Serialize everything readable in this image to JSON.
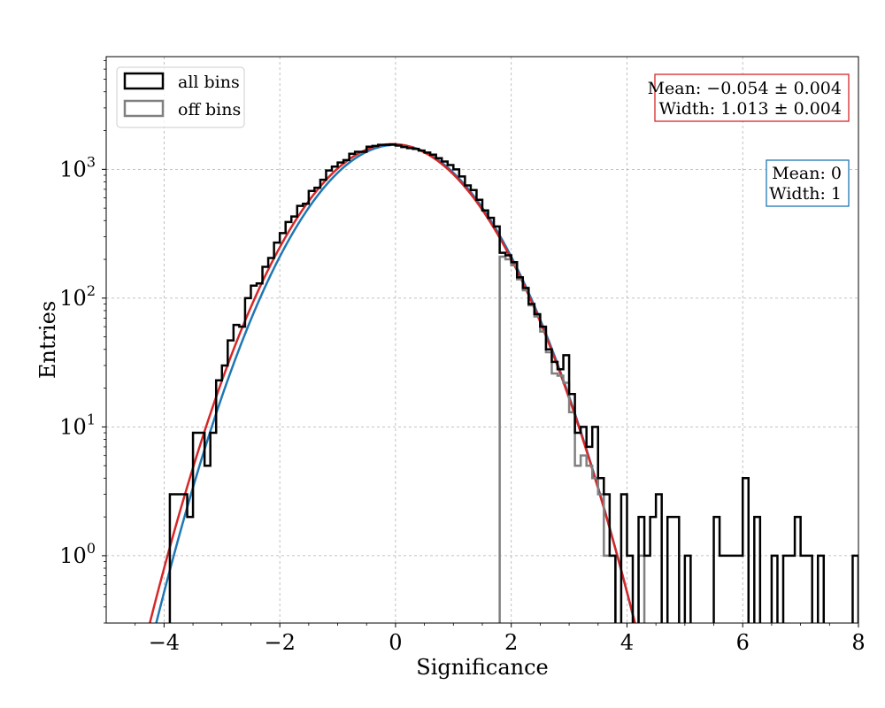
{
  "chart_data": {
    "type": "histogram",
    "xlabel": "Significance",
    "ylabel": "Entries",
    "xlim": [
      -5,
      8
    ],
    "ylim": [
      0.3,
      7500
    ],
    "yscale": "log",
    "grid": true,
    "x_ticks": [
      -4,
      -2,
      0,
      2,
      4,
      6,
      8
    ],
    "x_tick_labels": [
      "−4",
      "−2",
      "0",
      "2",
      "4",
      "6",
      "8"
    ],
    "y_ticks": [
      {
        "value": 1,
        "base": "10",
        "exp": "0"
      },
      {
        "value": 10,
        "base": "10",
        "exp": "1"
      },
      {
        "value": 100,
        "base": "10",
        "exp": "2"
      },
      {
        "value": 1000,
        "base": "10",
        "exp": "3"
      }
    ],
    "legend": {
      "placement": "top-left",
      "entries": [
        {
          "label": "all bins",
          "color": "#000000"
        },
        {
          "label": "off bins",
          "color": "#808080"
        }
      ]
    },
    "annotations": [
      {
        "id": "fit",
        "lines": [
          "Mean: −0.054 ± 0.004",
          "Width: 1.013 ± 0.004"
        ],
        "border": "#d62728",
        "placement": "top-right"
      },
      {
        "id": "ref",
        "lines": [
          "Mean: 0",
          "Width: 1"
        ],
        "border": "#1f77b4",
        "placement": "right"
      }
    ],
    "bin_width": 0.1,
    "series": [
      {
        "name": "all bins",
        "color": "#000000",
        "bins": [
          [
            -3.9,
            3
          ],
          [
            -3.8,
            3
          ],
          [
            -3.7,
            3
          ],
          [
            -3.6,
            2
          ],
          [
            -3.5,
            9
          ],
          [
            -3.4,
            9
          ],
          [
            -3.3,
            5
          ],
          [
            -3.2,
            9
          ],
          [
            -3.1,
            23
          ],
          [
            -3.0,
            30
          ],
          [
            -2.9,
            47
          ],
          [
            -2.8,
            62
          ],
          [
            -2.7,
            60
          ],
          [
            -2.6,
            100
          ],
          [
            -2.5,
            125
          ],
          [
            -2.4,
            130
          ],
          [
            -2.3,
            175
          ],
          [
            -2.2,
            205
          ],
          [
            -2.1,
            270
          ],
          [
            -2.0,
            320
          ],
          [
            -1.9,
            390
          ],
          [
            -1.8,
            430
          ],
          [
            -1.7,
            520
          ],
          [
            -1.6,
            540
          ],
          [
            -1.5,
            680
          ],
          [
            -1.4,
            720
          ],
          [
            -1.3,
            830
          ],
          [
            -1.2,
            980
          ],
          [
            -1.1,
            1050
          ],
          [
            -1.0,
            1130
          ],
          [
            -0.9,
            1180
          ],
          [
            -0.8,
            1320
          ],
          [
            -0.7,
            1370
          ],
          [
            -0.6,
            1370
          ],
          [
            -0.5,
            1500
          ],
          [
            -0.4,
            1520
          ],
          [
            -0.3,
            1550
          ],
          [
            -0.2,
            1550
          ],
          [
            -0.1,
            1560
          ],
          [
            0.0,
            1530
          ],
          [
            0.1,
            1490
          ],
          [
            0.2,
            1460
          ],
          [
            0.3,
            1440
          ],
          [
            0.4,
            1400
          ],
          [
            0.5,
            1350
          ],
          [
            0.6,
            1300
          ],
          [
            0.7,
            1220
          ],
          [
            0.8,
            1150
          ],
          [
            0.9,
            1080
          ],
          [
            1.0,
            1000
          ],
          [
            1.1,
            880
          ],
          [
            1.2,
            750
          ],
          [
            1.3,
            690
          ],
          [
            1.4,
            580
          ],
          [
            1.5,
            480
          ],
          [
            1.6,
            420
          ],
          [
            1.7,
            360
          ],
          [
            1.8,
            225
          ],
          [
            1.9,
            215
          ],
          [
            2.0,
            190
          ],
          [
            2.1,
            145
          ],
          [
            2.2,
            120
          ],
          [
            2.3,
            90
          ],
          [
            2.4,
            75
          ],
          [
            2.5,
            60
          ],
          [
            2.6,
            40
          ],
          [
            2.7,
            32
          ],
          [
            2.8,
            28
          ],
          [
            2.9,
            36
          ],
          [
            3.0,
            18
          ],
          [
            3.1,
            9
          ],
          [
            3.2,
            10
          ],
          [
            3.3,
            7
          ],
          [
            3.4,
            10
          ],
          [
            3.5,
            4
          ],
          [
            3.6,
            3
          ],
          [
            3.7,
            1
          ],
          [
            3.8,
            0.1
          ],
          [
            3.9,
            3
          ],
          [
            4.0,
            1
          ],
          [
            4.1,
            0.1
          ],
          [
            4.2,
            2
          ],
          [
            4.3,
            1
          ],
          [
            4.4,
            2
          ],
          [
            4.5,
            3
          ],
          [
            4.6,
            0.1
          ],
          [
            4.7,
            2
          ],
          [
            4.8,
            2
          ],
          [
            4.9,
            0.1
          ],
          [
            5.0,
            1
          ],
          [
            5.1,
            0.1
          ],
          [
            5.2,
            0.1
          ],
          [
            5.3,
            0.1
          ],
          [
            5.4,
            0.1
          ],
          [
            5.5,
            2
          ],
          [
            5.6,
            1
          ],
          [
            5.7,
            1
          ],
          [
            5.8,
            1
          ],
          [
            5.9,
            1
          ],
          [
            6.0,
            4
          ],
          [
            6.1,
            0.1
          ],
          [
            6.2,
            2
          ],
          [
            6.3,
            0.1
          ],
          [
            6.4,
            0.1
          ],
          [
            6.5,
            1
          ],
          [
            6.6,
            0.1
          ],
          [
            6.7,
            1
          ],
          [
            6.8,
            1
          ],
          [
            6.9,
            2
          ],
          [
            7.0,
            1
          ],
          [
            7.1,
            1
          ],
          [
            7.2,
            0.1
          ],
          [
            7.3,
            1
          ],
          [
            7.4,
            0.1
          ],
          [
            7.5,
            0.1
          ],
          [
            7.6,
            0.1
          ],
          [
            7.7,
            0.1
          ],
          [
            7.8,
            0.1
          ],
          [
            7.9,
            1
          ]
        ]
      },
      {
        "name": "off bins",
        "color": "#808080",
        "bins": [
          [
            1.8,
            210
          ],
          [
            1.9,
            200
          ],
          [
            2.0,
            180
          ],
          [
            2.1,
            140
          ],
          [
            2.2,
            115
          ],
          [
            2.3,
            88
          ],
          [
            2.4,
            72
          ],
          [
            2.5,
            55
          ],
          [
            2.6,
            38
          ],
          [
            2.7,
            26
          ],
          [
            2.8,
            25
          ],
          [
            2.9,
            22
          ],
          [
            3.0,
            13
          ],
          [
            3.1,
            5
          ],
          [
            3.2,
            6
          ],
          [
            3.3,
            5
          ],
          [
            3.4,
            4
          ],
          [
            3.5,
            3
          ],
          [
            3.6,
            1
          ],
          [
            3.7,
            1
          ],
          [
            3.8,
            0.1
          ],
          [
            3.9,
            0.1
          ],
          [
            4.0,
            0.1
          ],
          [
            4.1,
            0.1
          ],
          [
            4.2,
            1
          ],
          [
            4.3,
            0.1
          ]
        ]
      }
    ],
    "curves": [
      {
        "name": "fit",
        "color": "#d62728",
        "mean": -0.054,
        "sigma": 1.013,
        "amplitude": 1570
      },
      {
        "name": "reference",
        "color": "#1f77b4",
        "mean": 0,
        "sigma": 1,
        "amplitude": 1550
      }
    ]
  }
}
